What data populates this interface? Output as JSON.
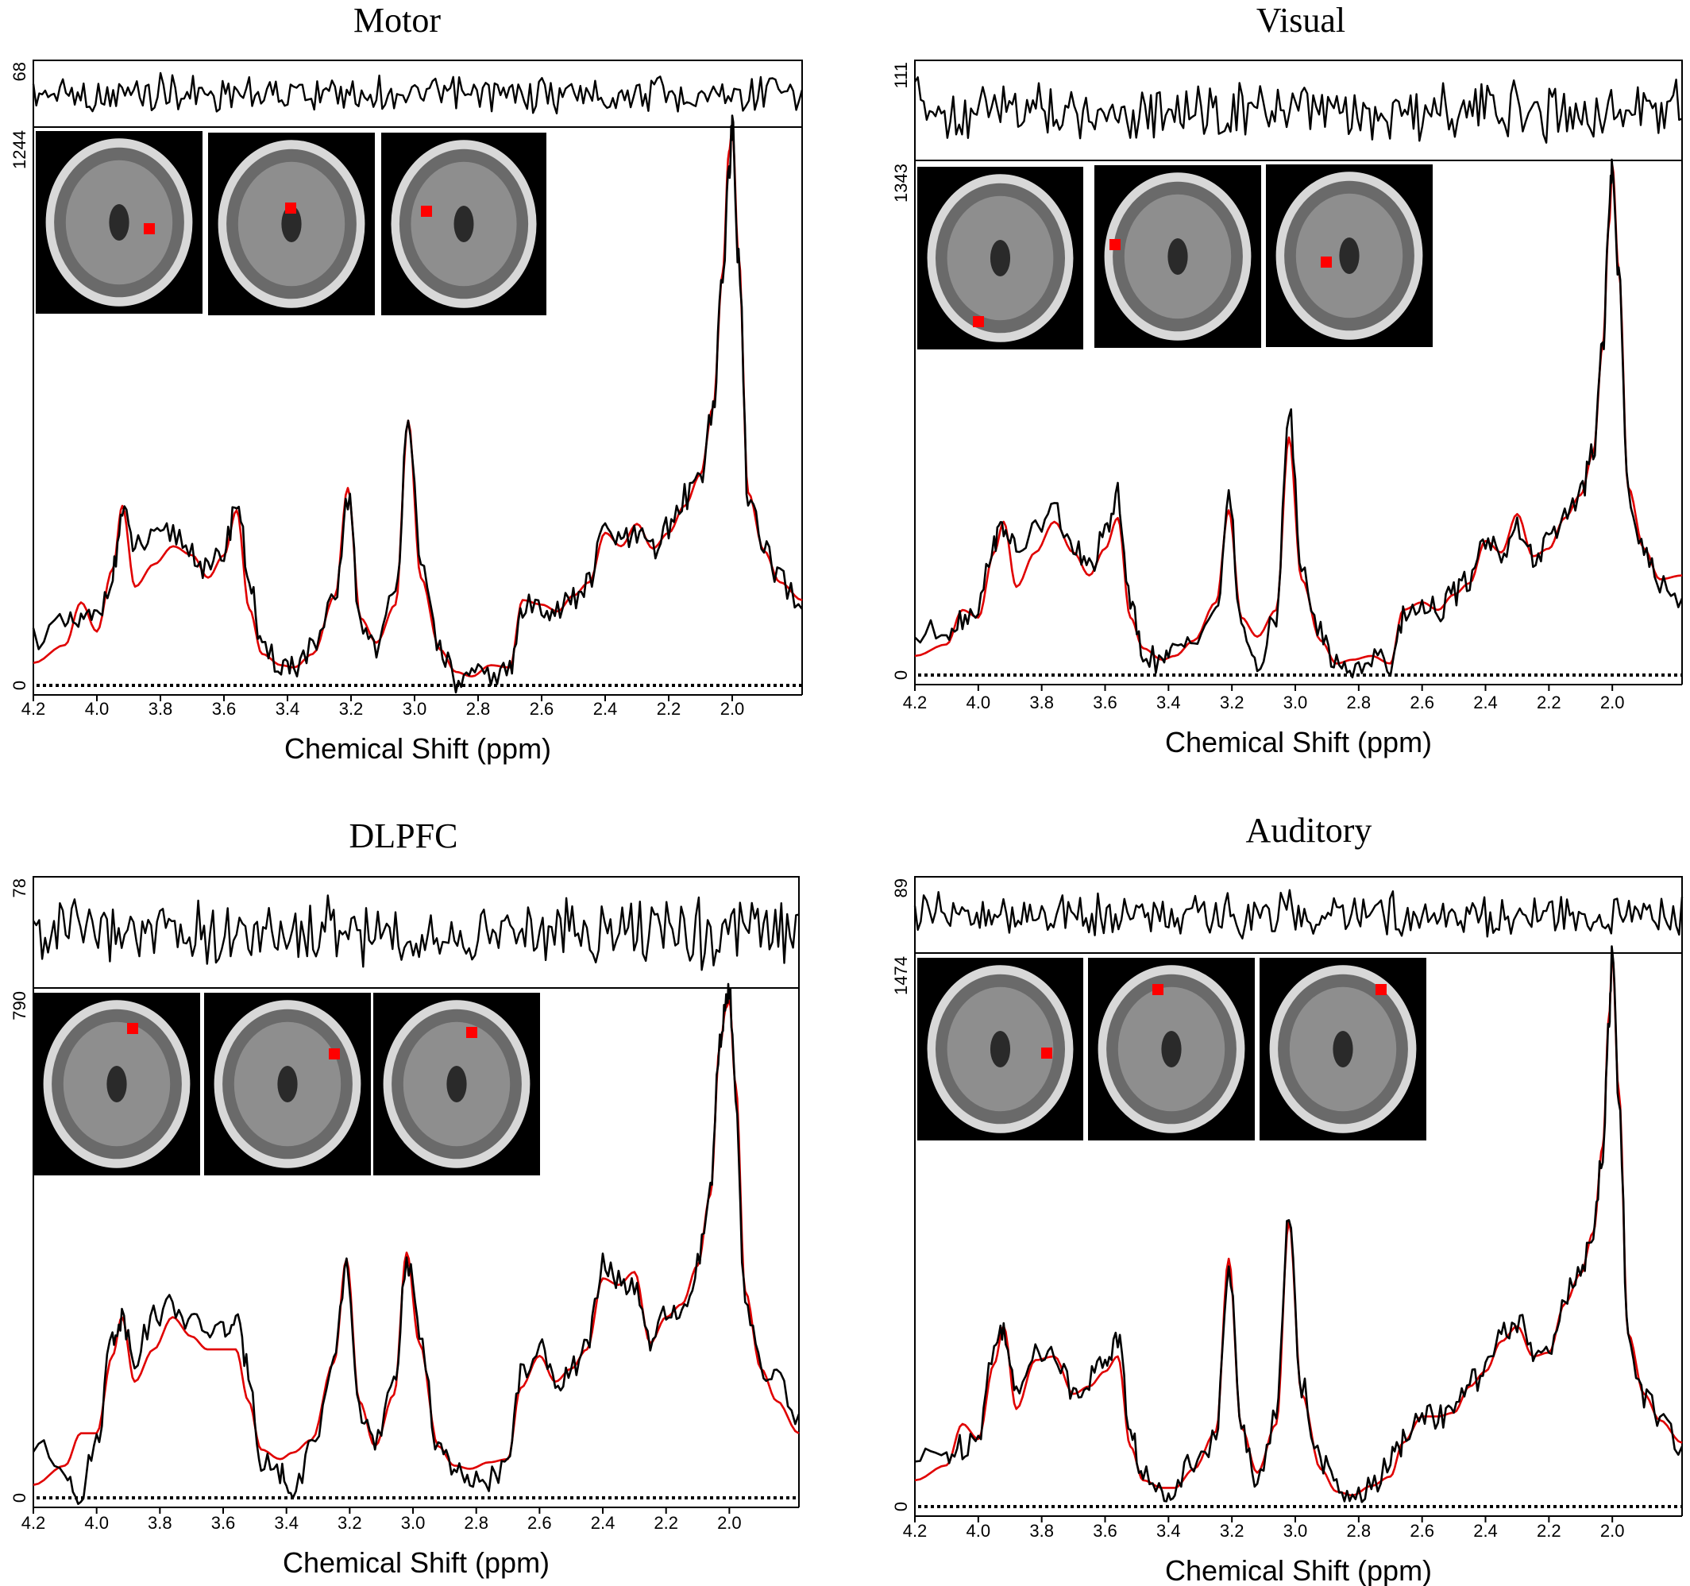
{
  "colors": {
    "data": "#000000",
    "fit": "#e00000",
    "voxel_marker": "#ff0000",
    "inset_background": "#000000"
  },
  "shared": {
    "xlabel": "Chemical Shift (ppm)",
    "x_ticks": [
      "4.2",
      "4.0",
      "3.8",
      "3.6",
      "3.4",
      "3.2",
      "3.0",
      "2.8",
      "2.6",
      "2.4",
      "2.2",
      "2.0"
    ]
  },
  "chart_data": [
    {
      "type": "line",
      "title": "Motor",
      "xlabel": "Chemical Shift (ppm)",
      "xlim": [
        4.2,
        1.78
      ],
      "x_reversed": true,
      "ylim": [
        0,
        1244
      ],
      "y_labels": [
        "0",
        "1244"
      ],
      "residual_scale_label": "68",
      "series_colors": {
        "data": "#000000",
        "fit": "#e00000"
      },
      "x": [
        4.2,
        4.1,
        4.05,
        4.0,
        3.95,
        3.92,
        3.88,
        3.82,
        3.76,
        3.7,
        3.65,
        3.6,
        3.56,
        3.52,
        3.48,
        3.42,
        3.38,
        3.32,
        3.25,
        3.21,
        3.17,
        3.12,
        3.06,
        3.02,
        2.98,
        2.92,
        2.87,
        2.82,
        2.76,
        2.7,
        2.66,
        2.6,
        2.55,
        2.5,
        2.45,
        2.4,
        2.35,
        2.3,
        2.25,
        2.2,
        2.15,
        2.1,
        2.06,
        2.03,
        2.01,
        2.0,
        1.98,
        1.95,
        1.9,
        1.85,
        1.78
      ],
      "data_values": [
        110,
        130,
        140,
        150,
        250,
        380,
        310,
        320,
        340,
        300,
        250,
        300,
        410,
        240,
        70,
        50,
        45,
        80,
        180,
        420,
        140,
        90,
        200,
        610,
        250,
        90,
        5,
        15,
        25,
        30,
        170,
        180,
        170,
        190,
        230,
        350,
        320,
        330,
        300,
        350,
        420,
        470,
        620,
        900,
        1150,
        1244,
        950,
        420,
        300,
        230,
        170
      ],
      "fit_values": [
        50,
        90,
        185,
        120,
        260,
        400,
        220,
        270,
        310,
        290,
        240,
        290,
        390,
        170,
        70,
        45,
        40,
        70,
        200,
        440,
        150,
        95,
        180,
        590,
        240,
        80,
        30,
        20,
        45,
        40,
        190,
        180,
        165,
        200,
        230,
        340,
        310,
        360,
        305,
        340,
        400,
        470,
        620,
        920,
        1190,
        1240,
        960,
        430,
        300,
        230,
        190
      ]
    },
    {
      "type": "line",
      "title": "Visual",
      "xlabel": "Chemical Shift (ppm)",
      "xlim": [
        4.2,
        1.78
      ],
      "x_reversed": true,
      "ylim": [
        0,
        1343
      ],
      "y_labels": [
        "0",
        "1343"
      ],
      "residual_scale_label": "111",
      "series_colors": {
        "data": "#000000",
        "fit": "#e00000"
      },
      "x": [
        4.2,
        4.1,
        4.05,
        4.0,
        3.95,
        3.92,
        3.88,
        3.82,
        3.76,
        3.7,
        3.65,
        3.6,
        3.56,
        3.52,
        3.48,
        3.42,
        3.38,
        3.32,
        3.25,
        3.21,
        3.17,
        3.12,
        3.06,
        3.02,
        2.98,
        2.92,
        2.87,
        2.82,
        2.76,
        2.7,
        2.66,
        2.6,
        2.55,
        2.5,
        2.45,
        2.4,
        2.35,
        2.3,
        2.25,
        2.2,
        2.15,
        2.1,
        2.06,
        2.03,
        2.01,
        2.0,
        1.98,
        1.95,
        1.9,
        1.85,
        1.78
      ],
      "data_values": [
        100,
        120,
        150,
        180,
        350,
        390,
        320,
        380,
        430,
        330,
        280,
        360,
        470,
        180,
        60,
        30,
        60,
        110,
        160,
        450,
        140,
        5,
        160,
        690,
        270,
        110,
        30,
        15,
        45,
        30,
        150,
        190,
        170,
        210,
        250,
        360,
        320,
        380,
        310,
        340,
        420,
        470,
        580,
        850,
        1200,
        1343,
        1050,
        480,
        320,
        240,
        200
      ],
      "fit_values": [
        50,
        80,
        170,
        150,
        320,
        400,
        230,
        320,
        400,
        320,
        260,
        330,
        410,
        150,
        70,
        40,
        50,
        90,
        190,
        430,
        150,
        100,
        170,
        620,
        250,
        90,
        30,
        40,
        50,
        30,
        170,
        190,
        170,
        210,
        240,
        350,
        320,
        420,
        310,
        330,
        410,
        470,
        580,
        860,
        1180,
        1330,
        1060,
        490,
        330,
        250,
        260
      ]
    },
    {
      "type": "line",
      "title": "DLPFC",
      "xlabel": "Chemical Shift (ppm)",
      "xlim": [
        4.2,
        1.78
      ],
      "x_reversed": true,
      "ylim": [
        0,
        790
      ],
      "y_labels": [
        "0",
        "790"
      ],
      "residual_scale_label": "78",
      "series_colors": {
        "data": "#000000",
        "fit": "#e00000"
      },
      "x": [
        4.2,
        4.1,
        4.05,
        4.0,
        3.95,
        3.92,
        3.88,
        3.82,
        3.76,
        3.7,
        3.65,
        3.6,
        3.56,
        3.52,
        3.48,
        3.42,
        3.38,
        3.32,
        3.25,
        3.21,
        3.17,
        3.12,
        3.06,
        3.02,
        2.98,
        2.92,
        2.87,
        2.82,
        2.76,
        2.7,
        2.66,
        2.6,
        2.55,
        2.5,
        2.45,
        2.4,
        2.35,
        2.3,
        2.25,
        2.2,
        2.15,
        2.1,
        2.06,
        2.03,
        2.01,
        2.0,
        1.98,
        1.95,
        1.9,
        1.85,
        1.78
      ],
      "data_values": [
        80,
        45,
        5,
        90,
        250,
        280,
        220,
        280,
        300,
        270,
        260,
        260,
        270,
        200,
        60,
        40,
        5,
        80,
        200,
        360,
        140,
        80,
        170,
        370,
        260,
        80,
        40,
        20,
        30,
        50,
        190,
        230,
        180,
        200,
        230,
        360,
        340,
        320,
        240,
        280,
        280,
        360,
        480,
        700,
        780,
        790,
        620,
        300,
        200,
        180,
        130
      ],
      "fit_values": [
        20,
        50,
        100,
        100,
        220,
        280,
        180,
        230,
        280,
        250,
        230,
        230,
        230,
        150,
        75,
        60,
        70,
        90,
        210,
        370,
        150,
        80,
        160,
        380,
        240,
        80,
        50,
        45,
        55,
        60,
        170,
        220,
        180,
        200,
        230,
        340,
        330,
        350,
        240,
        280,
        300,
        360,
        470,
        700,
        760,
        770,
        640,
        320,
        200,
        150,
        100
      ]
    },
    {
      "type": "line",
      "title": "Auditory",
      "xlabel": "Chemical Shift (ppm)",
      "xlim": [
        4.2,
        1.78
      ],
      "x_reversed": true,
      "ylim": [
        0,
        1474
      ],
      "y_labels": [
        "0",
        "1474"
      ],
      "residual_scale_label": "89",
      "series_colors": {
        "data": "#000000",
        "fit": "#e00000"
      },
      "x": [
        4.2,
        4.1,
        4.05,
        4.0,
        3.95,
        3.92,
        3.88,
        3.82,
        3.76,
        3.7,
        3.65,
        3.6,
        3.56,
        3.52,
        3.48,
        3.42,
        3.38,
        3.32,
        3.25,
        3.21,
        3.17,
        3.12,
        3.06,
        3.02,
        2.98,
        2.92,
        2.87,
        2.82,
        2.76,
        2.7,
        2.66,
        2.6,
        2.55,
        2.5,
        2.45,
        2.4,
        2.35,
        2.3,
        2.25,
        2.2,
        2.15,
        2.1,
        2.06,
        2.03,
        2.01,
        2.0,
        1.98,
        1.95,
        1.9,
        1.85,
        1.78
      ],
      "data_values": [
        120,
        140,
        160,
        200,
        420,
        480,
        290,
        430,
        400,
        310,
        340,
        390,
        450,
        200,
        80,
        30,
        60,
        130,
        180,
        640,
        200,
        80,
        240,
        780,
        320,
        120,
        50,
        10,
        50,
        120,
        170,
        250,
        240,
        250,
        330,
        360,
        450,
        500,
        400,
        420,
        560,
        620,
        720,
        950,
        1300,
        1474,
        1100,
        450,
        300,
        220,
        160
      ],
      "fit_values": [
        70,
        110,
        220,
        180,
        380,
        480,
        260,
        390,
        400,
        300,
        320,
        360,
        400,
        160,
        70,
        50,
        50,
        100,
        200,
        660,
        210,
        90,
        220,
        760,
        300,
        100,
        40,
        30,
        55,
        80,
        170,
        240,
        240,
        250,
        320,
        360,
        440,
        480,
        400,
        410,
        540,
        620,
        730,
        960,
        1310,
        1470,
        1110,
        460,
        300,
        230,
        170
      ]
    }
  ]
}
